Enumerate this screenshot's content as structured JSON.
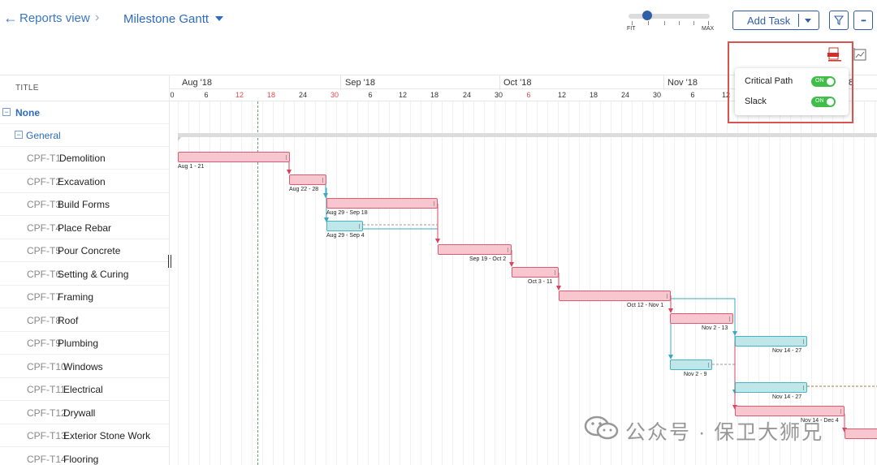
{
  "header": {
    "back_icon": "arrow-left-icon",
    "breadcrumb": "Reports view",
    "breadcrumb_chevron": "›",
    "view_name": "Milestone Gantt",
    "zoom": {
      "min_label": "FIT",
      "max_label": "MAX",
      "level": 0.17
    },
    "add_task_label": "Add Task",
    "filter_icon": "filter-icon",
    "more_icon": "more-dots-icon",
    "more_glyph": "•••",
    "export_pdf_icon": "pdf-export-icon",
    "chart_settings_icon": "chart-settings-icon"
  },
  "popover": {
    "critical_path_label": "Critical Path",
    "critical_path_state": "ON",
    "slack_label": "Slack",
    "slack_state": "ON"
  },
  "list": {
    "title_header": "TITLE",
    "groups": [
      {
        "label": "None",
        "toggle": "−"
      },
      {
        "label": "General",
        "toggle": "−"
      }
    ],
    "tasks": [
      {
        "id": "CPF-T1",
        "name": "Demolition"
      },
      {
        "id": "CPF-T2",
        "name": "Excavation"
      },
      {
        "id": "CPF-T3",
        "name": "Build Forms"
      },
      {
        "id": "CPF-T4",
        "name": "Place Rebar"
      },
      {
        "id": "CPF-T5",
        "name": "Pour Concrete"
      },
      {
        "id": "CPF-T6",
        "name": "Setting & Curing"
      },
      {
        "id": "CPF-T7",
        "name": "Framing"
      },
      {
        "id": "CPF-T8",
        "name": "Roof"
      },
      {
        "id": "CPF-T9",
        "name": "Plumbing"
      },
      {
        "id": "CPF-T10",
        "name": "Windows"
      },
      {
        "id": "CPF-T11",
        "name": "Electrical"
      },
      {
        "id": "CPF-T12",
        "name": "Drywall"
      },
      {
        "id": "CPF-T13",
        "name": "Exterior Stone Work"
      },
      {
        "id": "CPF-T14",
        "name": "Flooring"
      }
    ]
  },
  "timeline": {
    "months": [
      "Aug '18",
      "Sep '18",
      "Oct '18",
      "Nov '18",
      "8"
    ],
    "days": [
      "0",
      "6",
      "12",
      "18",
      "24",
      "30",
      "6",
      "12",
      "18",
      "24",
      "30",
      "6",
      "12",
      "18",
      "24",
      "30",
      "6",
      "12"
    ],
    "weekend_days": [
      "12",
      "18",
      "30",
      "6"
    ],
    "bars": [
      {
        "label": "Aug 1 - 21",
        "type": "critical"
      },
      {
        "label": "Aug 22 - 28",
        "type": "critical"
      },
      {
        "label": "Aug 29 - Sep 18",
        "type": "critical"
      },
      {
        "label": "Aug 29 - Sep 4",
        "type": "slack"
      },
      {
        "label": "Sep 19 - Oct 2",
        "type": "critical"
      },
      {
        "label": "Oct 3 - 11",
        "type": "critical"
      },
      {
        "label": "Oct 12 - Nov 1",
        "type": "critical"
      },
      {
        "label": "Nov 2 - 13",
        "type": "critical"
      },
      {
        "label": "Nov 14 - 27",
        "type": "slack"
      },
      {
        "label": "Nov 2 - 9",
        "type": "slack"
      },
      {
        "label": "Nov 14 - 27",
        "type": "slack"
      },
      {
        "label": "Nov 14 - Dec 4",
        "type": "critical"
      },
      {
        "label": "",
        "type": "critical"
      }
    ]
  },
  "watermark": {
    "text": "公众号 · 保卫大狮兄",
    "logo_icon": "wechat-logo-icon"
  },
  "colors": {
    "accent": "#2f5fa8",
    "critical": "#de5a72",
    "slack": "#48b3c1",
    "toggle_on": "#3fbf4a",
    "highlight": "#d9534f"
  }
}
